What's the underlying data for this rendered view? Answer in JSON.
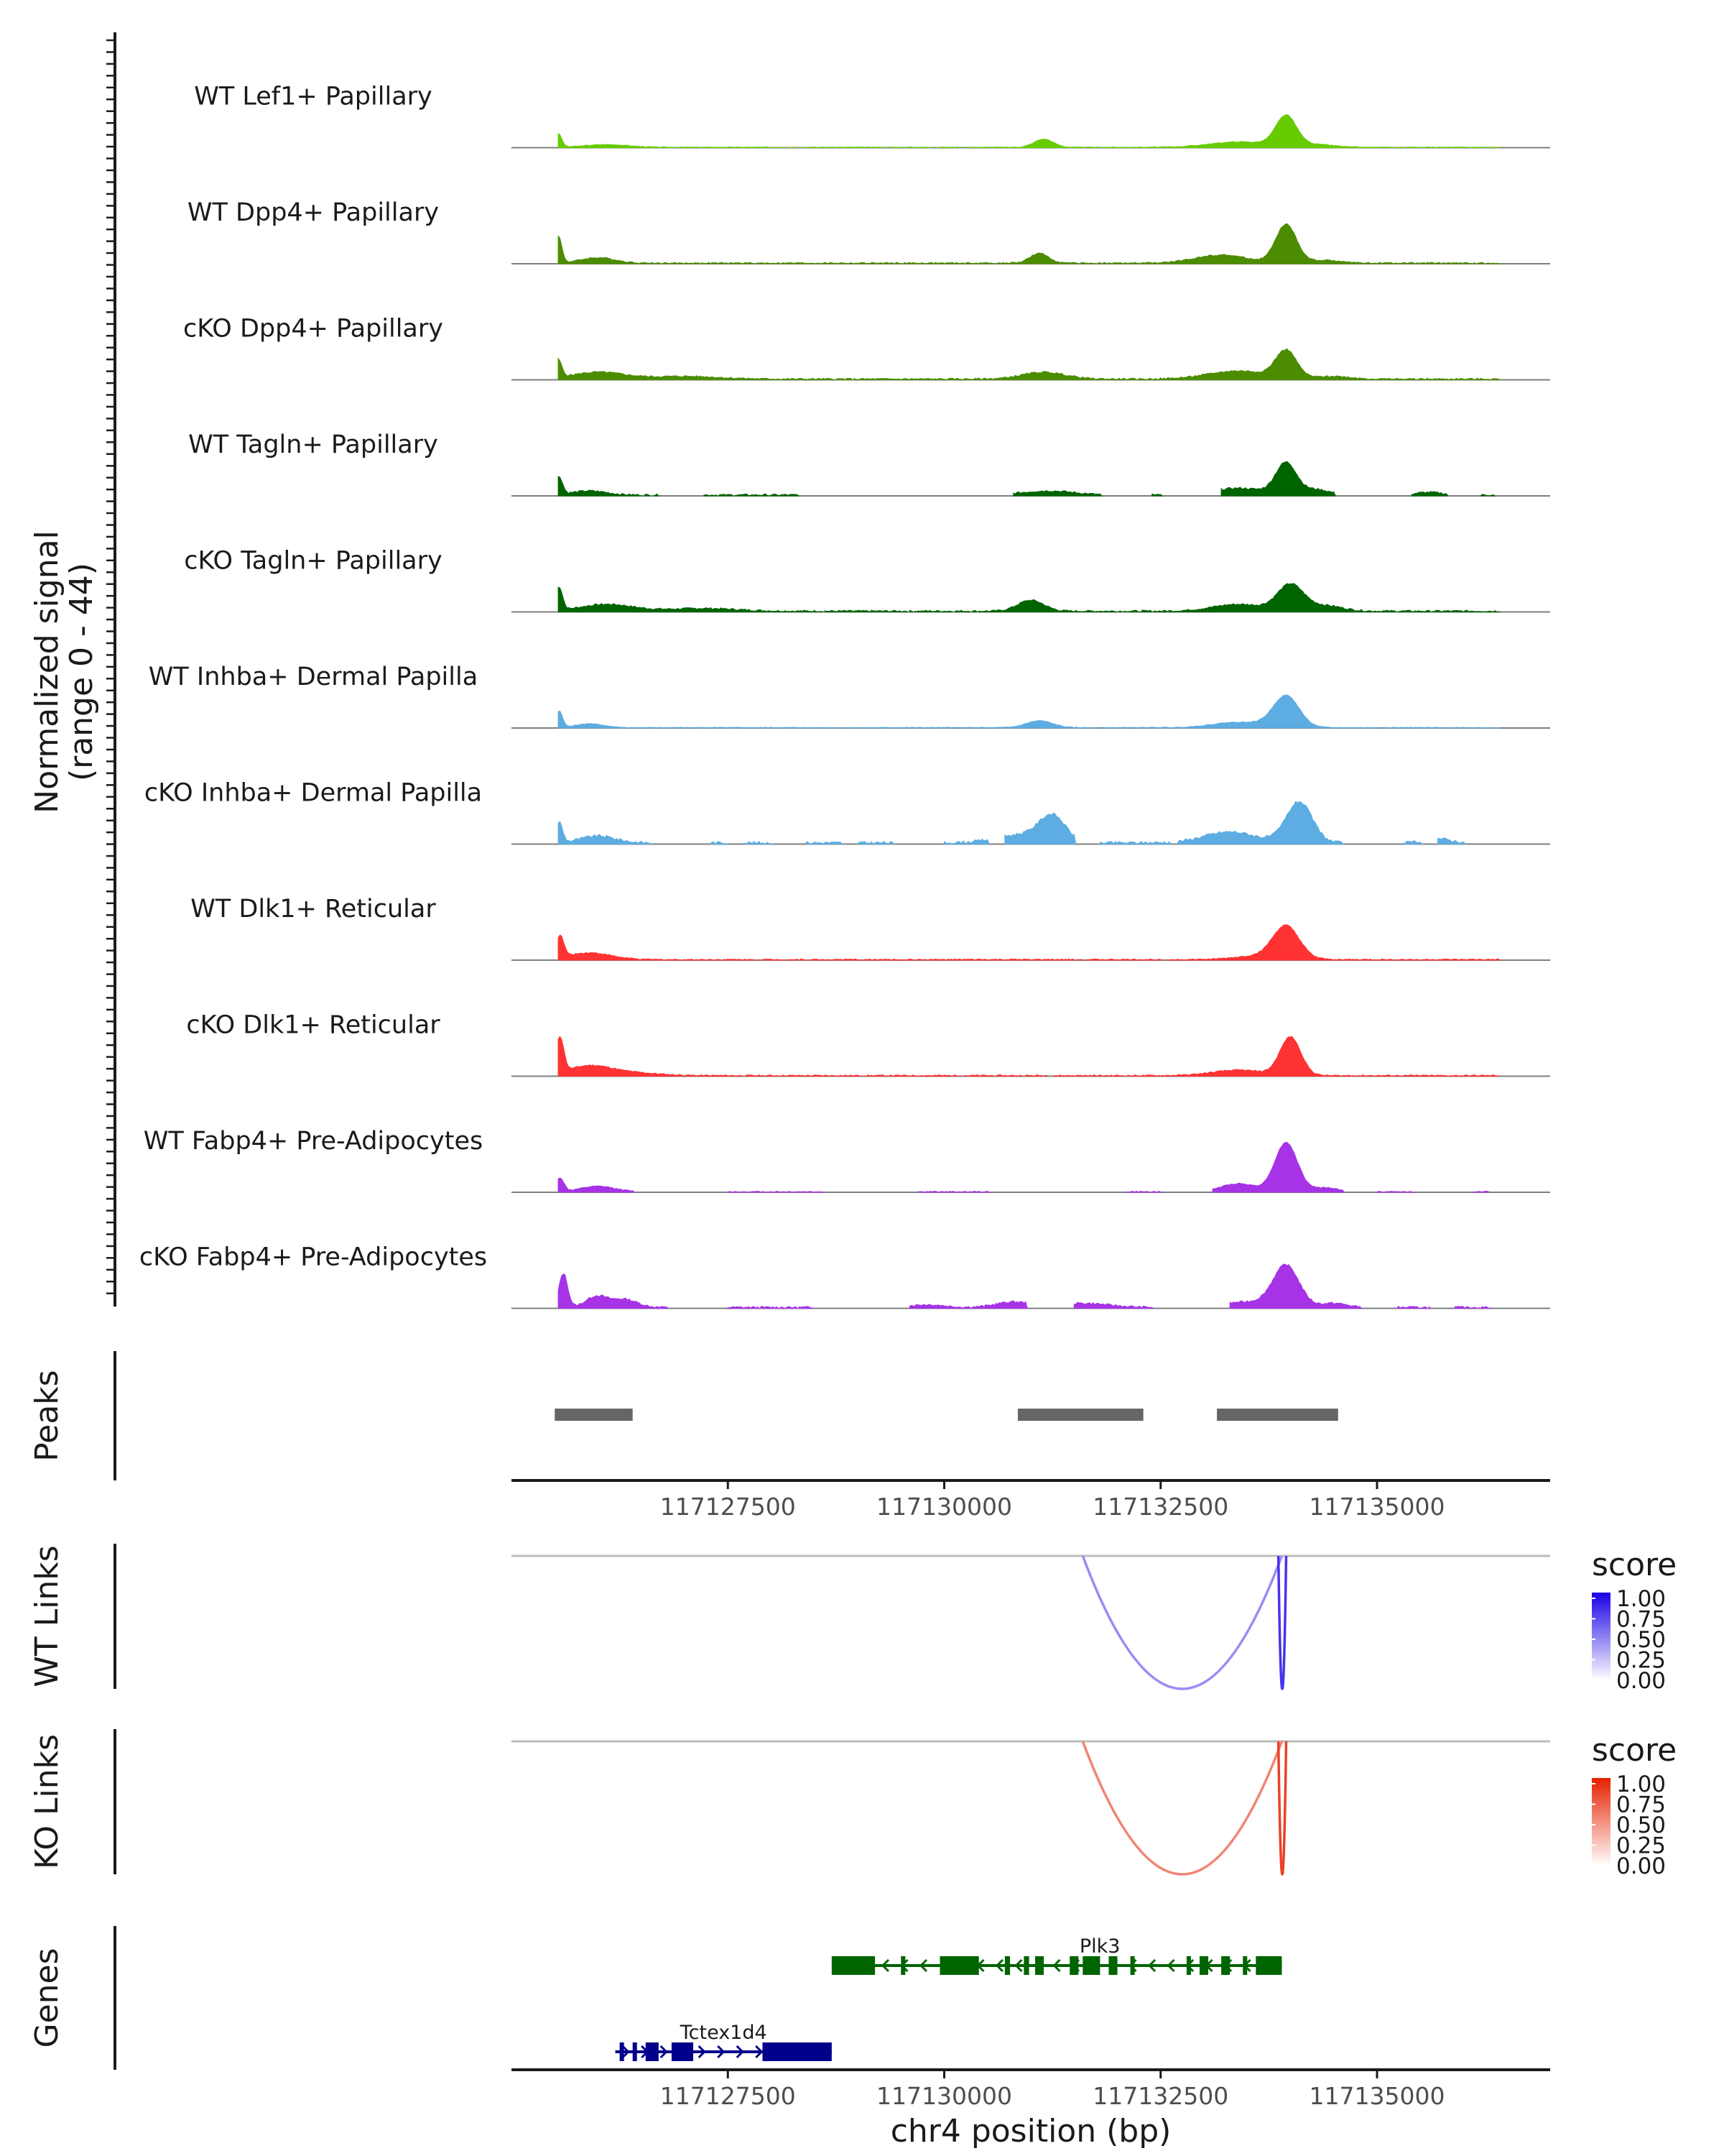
{
  "chart_data": {
    "type": "area",
    "title": "",
    "chromosome": "chr4",
    "xlabel": "chr4 position (bp)",
    "xlim": [
      117125000,
      117137000
    ],
    "xticks": [
      117127500,
      117130000,
      117132500,
      117135000
    ],
    "xtick_labels": [
      "117127500",
      "117130000",
      "117132500",
      "117135000"
    ],
    "coverage": {
      "ylabel": "Normalized signal",
      "ylabel_range": "(range 0 - 44)",
      "ylim": [
        0,
        44
      ],
      "x_step": 100,
      "x_start": 117125000,
      "tracks": [
        {
          "name": "WT Lef1+ Papillary",
          "color": "#66CC00",
          "peaks": [
            [
              117125540,
              10,
              40
            ],
            [
              117126100,
              2,
              250
            ],
            [
              117131150,
              6,
              110
            ],
            [
              117133420,
              4,
              350
            ],
            [
              117133950,
              22,
              120
            ],
            [
              117134300,
              2,
              200
            ]
          ],
          "segments": [
            [
              117125540,
              117136400
            ]
          ],
          "noise": 0.6
        },
        {
          "name": "WT Dpp4+ Papillary",
          "color": "#4C8C00",
          "peaks": [
            [
              117125540,
              20,
              40
            ],
            [
              117126000,
              4,
              200
            ],
            [
              117131100,
              7,
              110
            ],
            [
              117133200,
              6,
              300
            ],
            [
              117133950,
              28,
              120
            ],
            [
              117134400,
              2,
              200
            ]
          ],
          "segments": [
            [
              117125540,
              117136400
            ]
          ],
          "noise": 1.0
        },
        {
          "name": "cKO Dpp4+ Papillary",
          "color": "#4C8C00",
          "peaks": [
            [
              117125540,
              13,
              40
            ],
            [
              117126000,
              5,
              300
            ],
            [
              117127000,
              2,
              400
            ],
            [
              117131150,
              5,
              250
            ],
            [
              117133400,
              6,
              350
            ],
            [
              117133950,
              20,
              120
            ],
            [
              117134500,
              2,
              200
            ]
          ],
          "segments": [
            [
              117125540,
              117136400
            ]
          ],
          "noise": 1.2
        },
        {
          "name": "WT Tagln+ Papillary",
          "color": "#006400",
          "peaks": [
            [
              117125550,
              13,
              40
            ],
            [
              117125900,
              3,
              200
            ],
            [
              117131200,
              3,
              300
            ],
            [
              117133400,
              5,
              300
            ],
            [
              117133950,
              23,
              120
            ],
            [
              117134300,
              4,
              150
            ],
            [
              117135600,
              2,
              150
            ]
          ],
          "segments": [
            [
              117125540,
              117126700
            ],
            [
              117127200,
              117128300
            ],
            [
              117130800,
              117131800
            ],
            [
              117132400,
              117132500
            ],
            [
              117133200,
              117134500
            ],
            [
              117135400,
              117135800
            ],
            [
              117136200,
              117136350
            ]
          ],
          "noise": 1.4
        },
        {
          "name": "cKO Tagln+ Papillary",
          "color": "#006400",
          "peaks": [
            [
              117125550,
              17,
              40
            ],
            [
              117126100,
              5,
              300
            ],
            [
              117127200,
              2,
              400
            ],
            [
              117131000,
              8,
              150
            ],
            [
              117133400,
              5,
              300
            ],
            [
              117134000,
              19,
              150
            ],
            [
              117134400,
              4,
              200
            ]
          ],
          "segments": [
            [
              117125540,
              117136400
            ]
          ],
          "noise": 1.3
        },
        {
          "name": "WT Inhba+ Dermal Papilla",
          "color": "#5DADE2",
          "peaks": [
            [
              117125550,
              12,
              40
            ],
            [
              117125900,
              3,
              150
            ],
            [
              117131100,
              5,
              150
            ],
            [
              117133400,
              4,
              300
            ],
            [
              117133950,
              23,
              150
            ]
          ],
          "segments": [
            [
              117125540,
              117136400
            ]
          ],
          "noise": 0.6
        },
        {
          "name": "cKO Inhba+ Dermal Papilla",
          "color": "#5DADE2",
          "peaks": [
            [
              117125550,
              15,
              40
            ],
            [
              117126000,
              5,
              200
            ],
            [
              117130900,
              6,
              300
            ],
            [
              117131250,
              18,
              150
            ],
            [
              117133300,
              8,
              300
            ],
            [
              117134100,
              30,
              150
            ],
            [
              117135700,
              3,
              150
            ]
          ],
          "segments": [
            [
              117125540,
              117126600
            ],
            [
              117127300,
              117127500
            ],
            [
              117127700,
              117128000
            ],
            [
              117128400,
              117128800
            ],
            [
              117129000,
              117129400
            ],
            [
              117130000,
              117130500
            ],
            [
              117130700,
              117131500
            ],
            [
              117131800,
              117132600
            ],
            [
              117132700,
              117134600
            ],
            [
              117135300,
              117135500
            ],
            [
              117135700,
              117136000
            ]
          ],
          "noise": 2.0
        },
        {
          "name": "WT Dlk1+ Reticular",
          "color": "#FF3333",
          "peaks": [
            [
              117125560,
              16,
              45
            ],
            [
              117125900,
              5,
              250
            ],
            [
              117133700,
              3,
              300
            ],
            [
              117133950,
              23,
              150
            ]
          ],
          "segments": [
            [
              117125540,
              117136400
            ]
          ],
          "noise": 0.9
        },
        {
          "name": "cKO Dlk1+ Reticular",
          "color": "#FF3333",
          "peaks": [
            [
              117125560,
              26,
              45
            ],
            [
              117125900,
              7,
              250
            ],
            [
              117126400,
              2,
              300
            ],
            [
              117133400,
              4,
              300
            ],
            [
              117134000,
              28,
              120
            ]
          ],
          "segments": [
            [
              117125540,
              117136400
            ]
          ],
          "noise": 1.0
        },
        {
          "name": "WT Fabp4+ Pre-Adipocytes",
          "color": "#A633E6",
          "peaks": [
            [
              117125560,
              10,
              45
            ],
            [
              117126000,
              4,
              200
            ],
            [
              117133400,
              6,
              200
            ],
            [
              117133950,
              36,
              130
            ],
            [
              117134400,
              3,
              150
            ]
          ],
          "segments": [
            [
              117125540,
              117126400
            ],
            [
              117127500,
              117128600
            ],
            [
              117129700,
              117130500
            ],
            [
              117132100,
              117132500
            ],
            [
              117133100,
              117134600
            ],
            [
              117135000,
              117135400
            ],
            [
              117136100,
              117136300
            ]
          ],
          "noise": 0.8
        },
        {
          "name": "cKO Fabp4+ Pre-Adipocytes",
          "color": "#A633E6",
          "peaks": [
            [
              117125600,
              25,
              50
            ],
            [
              117125980,
              8,
              120
            ],
            [
              117126300,
              6,
              150
            ],
            [
              117129800,
              2,
              200
            ],
            [
              117130800,
              4,
              200
            ],
            [
              117131600,
              3,
              300
            ],
            [
              117133500,
              4,
              300
            ],
            [
              117133950,
              30,
              150
            ],
            [
              117134500,
              3,
              150
            ]
          ],
          "segments": [
            [
              117125540,
              117126800
            ],
            [
              117127500,
              117128500
            ],
            [
              117129600,
              117130950
            ],
            [
              117131500,
              117132400
            ],
            [
              117133300,
              117134800
            ],
            [
              117135200,
              117135600
            ],
            [
              117135900,
              117136300
            ]
          ],
          "noise": 1.5
        }
      ]
    },
    "peaks_track": {
      "label": "Peaks",
      "color": "#666666",
      "regions": [
        [
          117125500,
          117126400
        ],
        [
          117130850,
          117132300
        ],
        [
          117133150,
          117134550
        ]
      ]
    },
    "links": [
      {
        "label": "WT Links",
        "legend_title": "score",
        "legend_ticks": [
          "1.00",
          "0.75",
          "0.50",
          "0.25",
          "0.00"
        ],
        "color_low": "#FFFFFF",
        "color_high": "#1A00E6",
        "arcs": [
          {
            "start": 117131600,
            "end": 117133900,
            "score": 0.45,
            "depth": 1.0
          },
          {
            "start": 117133860,
            "end": 117133950,
            "score": 0.8,
            "depth": 1.0
          }
        ]
      },
      {
        "label": "KO Links",
        "legend_title": "score",
        "legend_ticks": [
          "1.00",
          "0.75",
          "0.50",
          "0.25",
          "0.00"
        ],
        "color_low": "#FFFFFF",
        "color_high": "#E62000",
        "arcs": [
          {
            "start": 117131600,
            "end": 117133900,
            "score": 0.55,
            "depth": 1.0
          },
          {
            "start": 117133860,
            "end": 117133950,
            "score": 0.85,
            "depth": 1.0
          }
        ]
      }
    ],
    "genes": {
      "label": "Genes",
      "items": [
        {
          "name": "Plk3",
          "strand": "-",
          "color": "#006400",
          "start": 117128700,
          "end": 117133900,
          "exons": [
            [
              117128700,
              117129200
            ],
            [
              117129500,
              117129550
            ],
            [
              117129950,
              117130400
            ],
            [
              117130700,
              117130760
            ],
            [
              117130920,
              117130980
            ],
            [
              117131050,
              117131150
            ],
            [
              117131450,
              117131550
            ],
            [
              117131600,
              117131800
            ],
            [
              117131900,
              117132000
            ],
            [
              117132150,
              117132200
            ],
            [
              117132800,
              117132850
            ],
            [
              117132950,
              117133050
            ],
            [
              117133200,
              117133300
            ],
            [
              117133450,
              117133500
            ],
            [
              117133600,
              117133900
            ]
          ],
          "row": 0
        },
        {
          "name": "Tctex1d4",
          "strand": "+",
          "color": "#00008B",
          "start": 117126200,
          "end": 117128700,
          "exons": [
            [
              117126250,
              117126300
            ],
            [
              117126400,
              117126450
            ],
            [
              117126550,
              117126700
            ],
            [
              117126850,
              117127100
            ],
            [
              117127900,
              117128700
            ]
          ],
          "row": 1
        }
      ]
    }
  }
}
